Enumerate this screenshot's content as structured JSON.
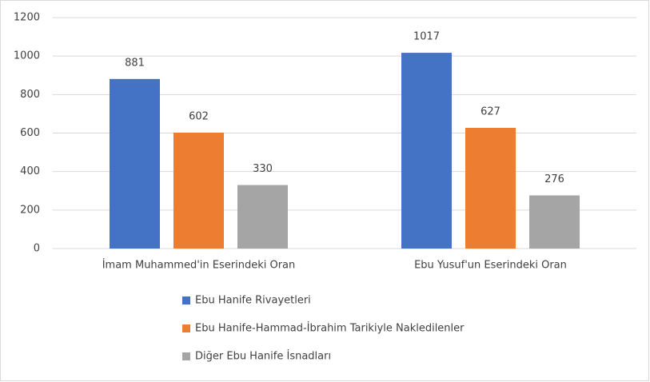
{
  "chart_data": {
    "type": "bar",
    "categories": [
      "İmam Muhammed'in Eserindeki Oran",
      "Ebu Yusuf'un Eserindeki Oran"
    ],
    "series": [
      {
        "name": "Ebu Hanife Rivayetleri",
        "color": "#4472c4",
        "values": [
          881,
          1017
        ]
      },
      {
        "name": "Ebu Hanife-Hammad-İbrahim Tarikiyle Nakledilenler",
        "color": "#ed7d31",
        "values": [
          602,
          627
        ]
      },
      {
        "name": "Diğer Ebu Hanife İsnadları",
        "color": "#a5a5a5",
        "values": [
          330,
          276
        ]
      }
    ],
    "ylim": [
      0,
      1200
    ],
    "yticks": [
      0,
      200,
      400,
      600,
      800,
      1000,
      1200
    ],
    "grid": true,
    "legend": "bottom"
  }
}
